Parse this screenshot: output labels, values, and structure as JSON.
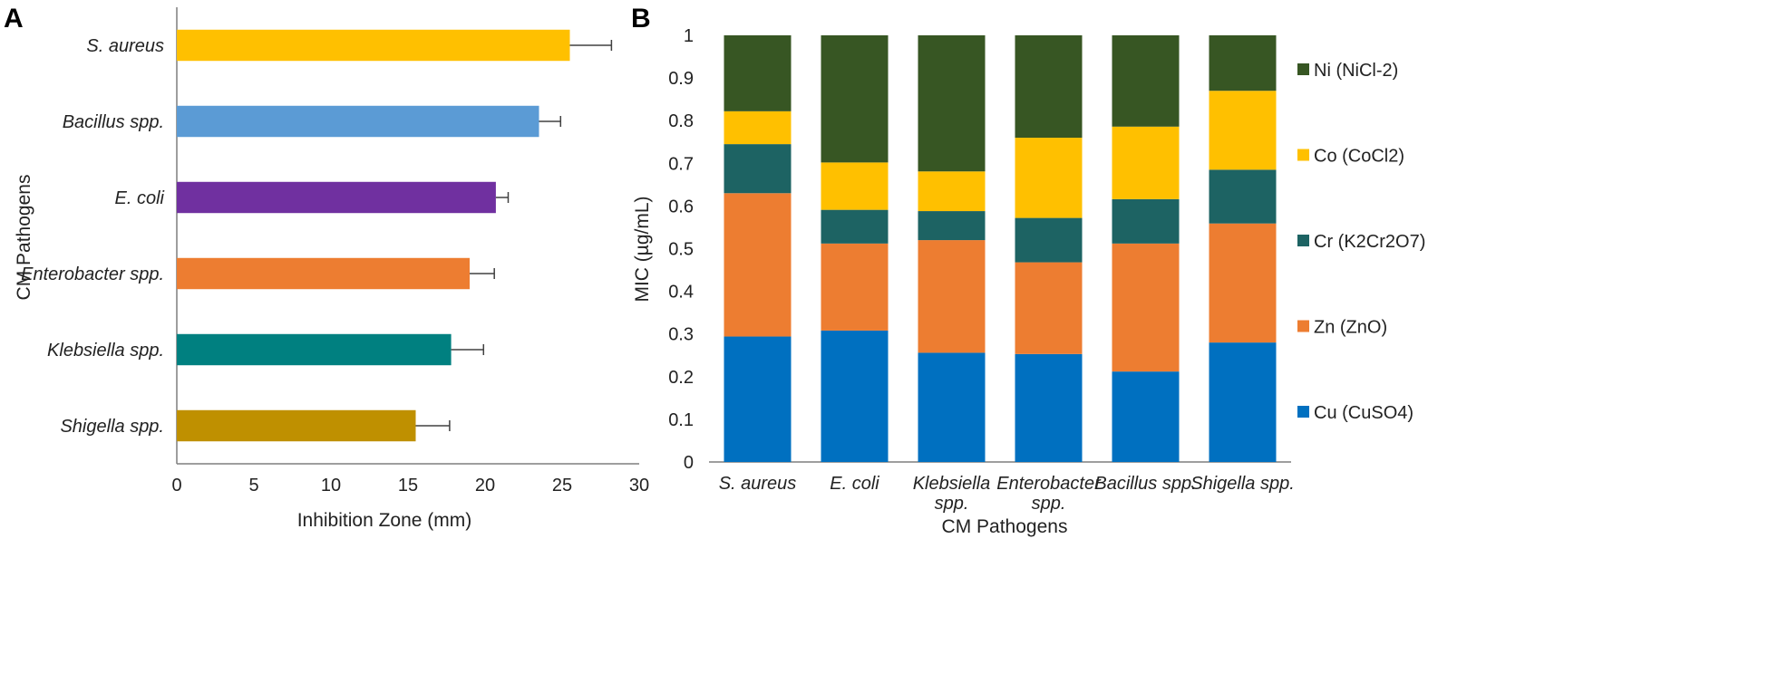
{
  "chart_data": [
    {
      "panel": "A",
      "type": "bar",
      "orientation": "horizontal",
      "categories": [
        "S. aureus",
        "Bacillus spp.",
        "E. coli",
        "Enterobacter spp.",
        "Klebsiella spp.",
        "Shigella spp."
      ],
      "values": [
        25.5,
        23.5,
        20.7,
        19.0,
        17.8,
        15.5
      ],
      "errors": [
        2.7,
        1.4,
        0.8,
        1.6,
        2.1,
        2.2
      ],
      "colors": [
        "#FFC000",
        "#5B9BD5",
        "#7030A0",
        "#ED7D31",
        "#008080",
        "#BF9000"
      ],
      "xlabel": "Inhibition Zone (mm)",
      "ylabel": "CM Pathogens",
      "xlim": [
        0,
        30
      ],
      "xticks": [
        "0",
        "5",
        "10",
        "15",
        "20",
        "25",
        "30"
      ]
    },
    {
      "panel": "B",
      "type": "bar",
      "stacked": true,
      "categories": [
        "S. aureus",
        "E. coli",
        "Klebsiella spp.",
        "Enterobacter spp.",
        "Bacillus spp.",
        "Shigella spp."
      ],
      "series": [
        {
          "name": "Cu (CuSO4)",
          "color": "#0070C0",
          "values": [
            0.294,
            0.308,
            0.256,
            0.253,
            0.212,
            0.28
          ]
        },
        {
          "name": "Zn (ZnO)",
          "color": "#ED7D31",
          "values": [
            0.336,
            0.204,
            0.264,
            0.215,
            0.3,
            0.279
          ]
        },
        {
          "name": "Cr (K2Cr2O7)",
          "color": "#1D6363",
          "values": [
            0.115,
            0.079,
            0.068,
            0.104,
            0.104,
            0.126
          ]
        },
        {
          "name": "Co (CoCl2)",
          "color": "#FFC000",
          "values": [
            0.077,
            0.111,
            0.093,
            0.188,
            0.17,
            0.185
          ]
        },
        {
          "name": "Ni (NiCl-2)",
          "color": "#375623",
          "values": [
            0.178,
            0.298,
            0.319,
            0.24,
            0.214,
            0.13
          ]
        }
      ],
      "xlabel": "CM Pathogens",
      "ylabel": "MIC  (µg/mL)",
      "ylim": [
        0,
        1
      ],
      "yticks": [
        "0",
        "0.1",
        "0.2",
        "0.3",
        "0.4",
        "0.5",
        "0.6",
        "0.7",
        "0.8",
        "0.9",
        "1"
      ],
      "category_label_lines": [
        [
          "S. aureus"
        ],
        [
          "E. coli"
        ],
        [
          "Klebsiella",
          "spp."
        ],
        [
          "Enterobacter",
          "spp."
        ],
        [
          "Bacillus spp."
        ],
        [
          "Shigella spp."
        ]
      ]
    }
  ]
}
